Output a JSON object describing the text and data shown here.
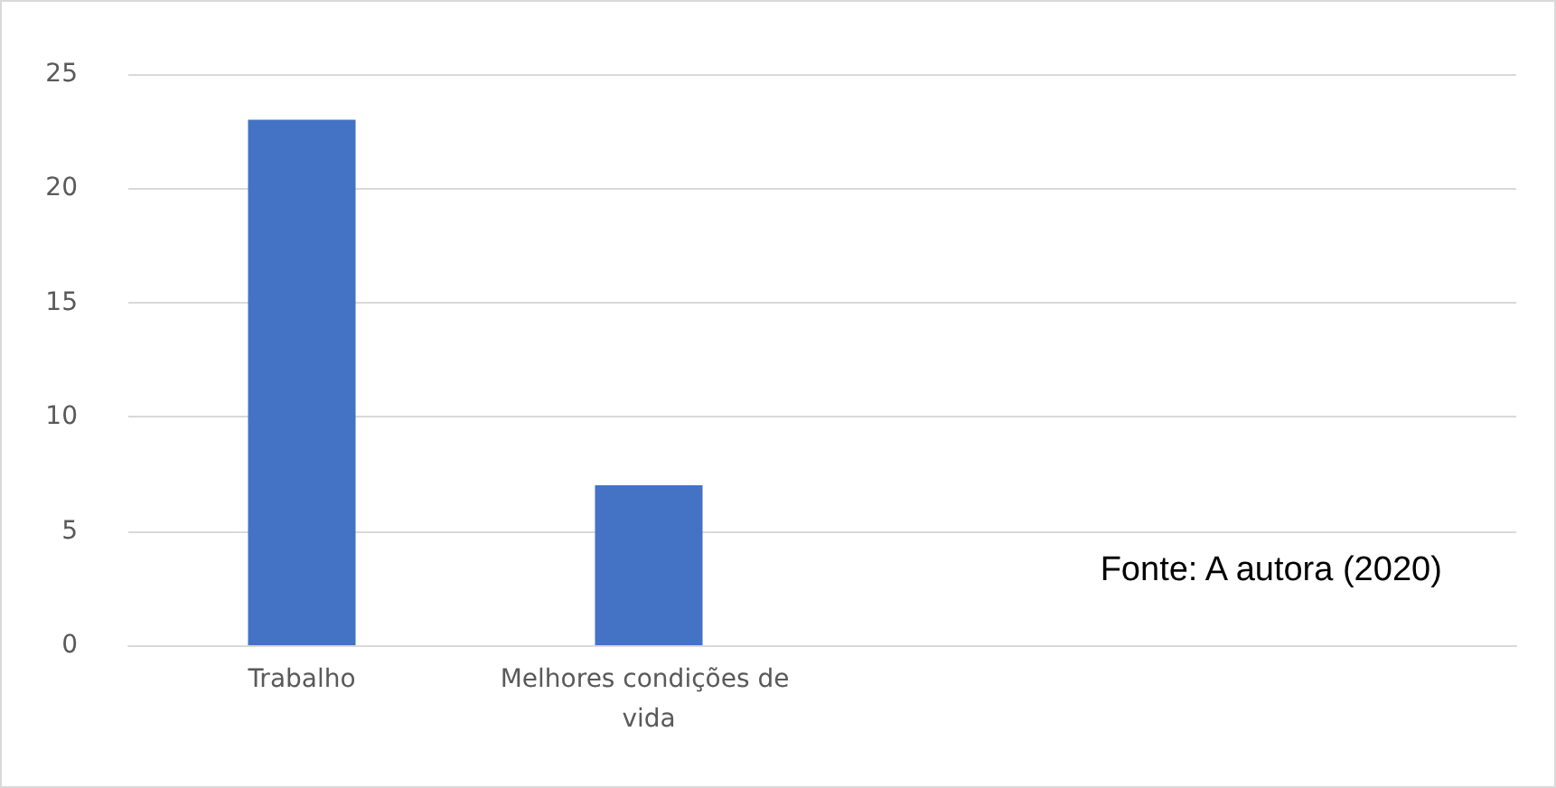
{
  "chart_data": {
    "type": "bar",
    "categories": [
      "Trabalho",
      "Melhores condições de vida",
      null,
      null
    ],
    "values": [
      23,
      7,
      null,
      null
    ],
    "color": "#4472c4",
    "ylim": [
      0,
      25
    ],
    "yticks": [
      0,
      5,
      10,
      15,
      20,
      25
    ],
    "grid": "y",
    "annotations": [
      "Fonte: A autora (2020)"
    ]
  }
}
